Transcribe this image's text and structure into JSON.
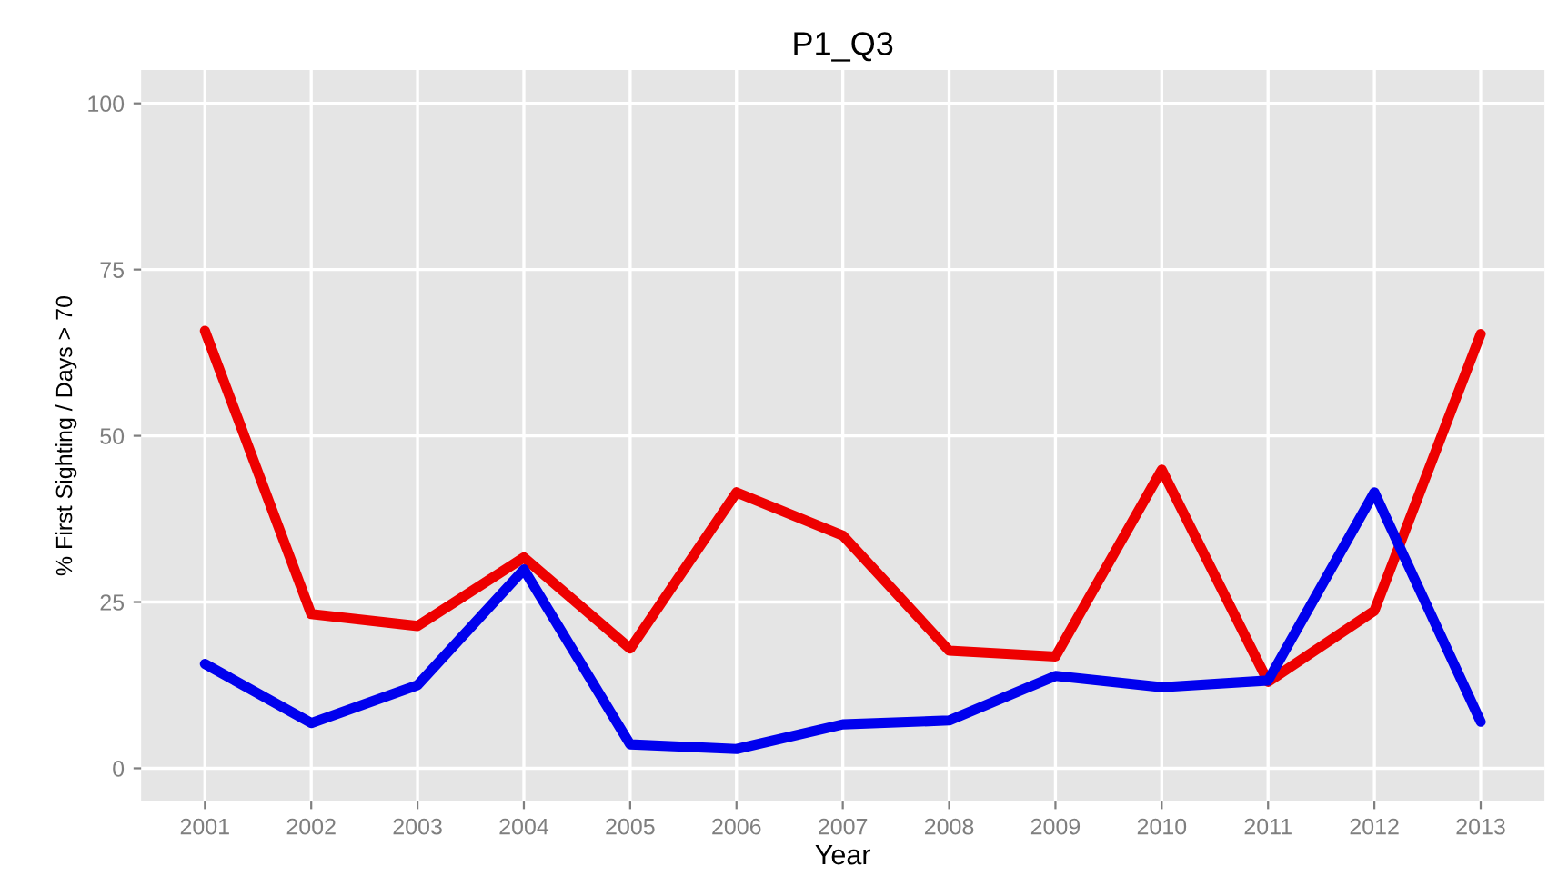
{
  "chart_data": {
    "type": "line",
    "title": "P1_Q3",
    "xlabel": "Year",
    "ylabel": "% First Sighting / Days > 70",
    "x": [
      2001,
      2002,
      2003,
      2004,
      2005,
      2006,
      2007,
      2008,
      2009,
      2010,
      2011,
      2012,
      2013
    ],
    "series": [
      {
        "color": "#ee0000",
        "values": [
          65.8,
          23.2,
          21.4,
          31.7,
          18.0,
          41.5,
          35.0,
          17.7,
          16.8,
          44.9,
          13.0,
          23.7,
          65.3
        ]
      },
      {
        "color": "#0000ee",
        "values": [
          15.7,
          6.8,
          12.5,
          29.9,
          3.6,
          2.9,
          6.6,
          7.2,
          13.9,
          12.2,
          13.2,
          41.5,
          7.0
        ]
      }
    ],
    "xlim": [
      2000.4,
      2013.6
    ],
    "ylim": [
      -5,
      105
    ],
    "xticks": [
      2001,
      2002,
      2003,
      2004,
      2005,
      2006,
      2007,
      2008,
      2009,
      2010,
      2011,
      2012,
      2013
    ],
    "yticks": [
      0,
      25,
      50,
      75,
      100
    ],
    "grid": true,
    "legend": false,
    "marker": "none",
    "line_style": "solid"
  }
}
